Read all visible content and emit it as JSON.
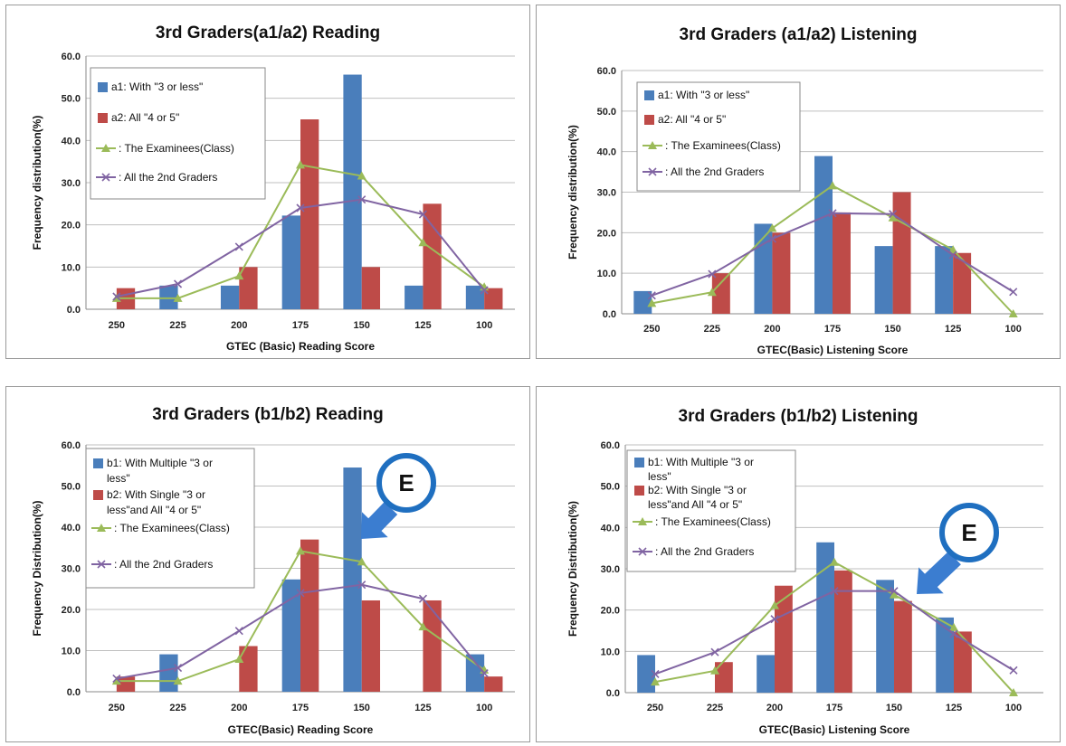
{
  "colors": {
    "series1": "#4a7ebb",
    "series2": "#be4b48",
    "series3": "#9bbb59",
    "series4": "#8064a2",
    "callout": "#1f6fc0",
    "arrow": "#3b7dd0"
  },
  "chart_data": [
    {
      "type": "bar",
      "title": "3rd Graders(a1/a2) Reading",
      "xlabel": "GTEC (Basic) Reading Score",
      "ylabel": "Frequency distribution(%)",
      "ylim": [
        0,
        60
      ],
      "yticks": [
        "0.0",
        "10.0",
        "20.0",
        "30.0",
        "40.0",
        "50.0",
        "60.0"
      ],
      "categories": [
        "250",
        "225",
        "200",
        "175",
        "150",
        "125",
        "100"
      ],
      "grid": true,
      "legend_position": "top-left",
      "series": [
        {
          "name": "a1: With \"3 or less\"",
          "kind": "bar",
          "values": [
            0,
            5.6,
            5.6,
            22.2,
            55.6,
            5.6,
            5.6
          ]
        },
        {
          "name": "a2:  All \"4 or 5\"",
          "kind": "bar",
          "values": [
            5,
            0,
            10,
            45,
            10,
            25,
            5
          ]
        },
        {
          "name": ": The Examinees(Class)",
          "kind": "line",
          "marker": "triangle",
          "values": [
            2.6,
            2.6,
            7.9,
            34.2,
            31.6,
            15.8,
            5.3
          ]
        },
        {
          "name": ": All the 2nd Graders",
          "kind": "line",
          "marker": "x",
          "values": [
            3.0,
            6.0,
            14.8,
            24.0,
            26.0,
            22.5,
            4.5
          ]
        }
      ]
    },
    {
      "type": "bar",
      "title": "3rd Graders (a1/a2) Listening",
      "xlabel": "GTEC(Basic) Listening Score",
      "ylabel": "Frequency distribution(%)",
      "ylim": [
        0,
        60
      ],
      "yticks": [
        "0.0",
        "10.0",
        "20.0",
        "30.0",
        "40.0",
        "50.0",
        "60.0"
      ],
      "categories": [
        "250",
        "225",
        "200",
        "175",
        "150",
        "125",
        "100"
      ],
      "grid": true,
      "legend_position": "top-left",
      "series": [
        {
          "name": "a1: With \"3 or less\"",
          "kind": "bar",
          "values": [
            5.6,
            0,
            22.2,
            38.9,
            16.7,
            16.7,
            0
          ]
        },
        {
          "name": "a2:  All \"4 or 5\"",
          "kind": "bar",
          "values": [
            0,
            10,
            20,
            25,
            30,
            15,
            0
          ]
        },
        {
          "name": ": The Examinees(Class)",
          "kind": "line",
          "marker": "triangle",
          "values": [
            2.6,
            5.3,
            21.1,
            31.6,
            23.7,
            15.8,
            0
          ]
        },
        {
          "name": ": All the 2nd Graders",
          "kind": "line",
          "marker": "x",
          "values": [
            4.5,
            9.8,
            18.5,
            24.8,
            24.6,
            14.5,
            5.4
          ]
        }
      ]
    },
    {
      "type": "bar",
      "title": "3rd Graders (b1/b2) Reading",
      "xlabel": "GTEC(Basic) Reading Score",
      "ylabel": "Frequency Distribution(%)",
      "ylim": [
        0,
        60
      ],
      "yticks": [
        "0.0",
        "10.0",
        "20.0",
        "30.0",
        "40.0",
        "50.0",
        "60.0"
      ],
      "categories": [
        "250",
        "225",
        "200",
        "175",
        "150",
        "125",
        "100"
      ],
      "grid": true,
      "legend_position": "top-left",
      "callout": "E",
      "series": [
        {
          "name": "b1: With Multiple \"3 or less\"",
          "kind": "bar",
          "values": [
            0,
            9.1,
            0,
            27.3,
            54.5,
            0,
            9.1
          ]
        },
        {
          "name": "b2: With Single \"3 or less\"and  All \"4 or 5\"",
          "kind": "bar",
          "values": [
            3.7,
            0,
            11.1,
            37.0,
            22.2,
            22.2,
            3.7
          ]
        },
        {
          "name": ": The Examinees(Class)",
          "kind": "line",
          "marker": "triangle",
          "values": [
            2.6,
            2.6,
            7.9,
            34.2,
            31.6,
            15.8,
            5.3
          ]
        },
        {
          "name": ": All the 2nd Graders",
          "kind": "line",
          "marker": "x",
          "values": [
            3.2,
            5.8,
            14.8,
            24.0,
            26.0,
            22.6,
            4.5
          ]
        }
      ]
    },
    {
      "type": "bar",
      "title": "3rd Graders (b1/b2) Listening",
      "xlabel": "GTEC(Basic) Listening Score",
      "ylabel": "Frequency Distribution(%)",
      "ylim": [
        0,
        60
      ],
      "yticks": [
        "0.0",
        "10.0",
        "20.0",
        "30.0",
        "40.0",
        "50.0",
        "60.0"
      ],
      "categories": [
        "250",
        "225",
        "200",
        "175",
        "150",
        "125",
        "100"
      ],
      "grid": true,
      "legend_position": "top-left",
      "callout": "E",
      "series": [
        {
          "name": "b1: With Multiple \"3 or less\"",
          "kind": "bar",
          "values": [
            9.1,
            0,
            9.1,
            36.4,
            27.3,
            18.2,
            0
          ]
        },
        {
          "name": "b2: With Single \"3 or less\"and  All \"4 or 5\"",
          "kind": "bar",
          "values": [
            0,
            7.4,
            25.9,
            29.6,
            22.2,
            14.8,
            0
          ]
        },
        {
          "name": ": The Examinees(Class)",
          "kind": "line",
          "marker": "triangle",
          "values": [
            2.6,
            5.3,
            21.1,
            31.6,
            23.7,
            15.8,
            0
          ]
        },
        {
          "name": ": All the 2nd Graders",
          "kind": "line",
          "marker": "x",
          "values": [
            4.5,
            9.8,
            17.8,
            24.6,
            24.6,
            14.2,
            5.4
          ]
        }
      ]
    }
  ]
}
